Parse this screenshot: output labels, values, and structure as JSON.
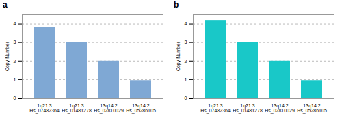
{
  "chart_data": [
    {
      "type": "bar",
      "title": "a",
      "ylabel": "Copy Number",
      "categories": [
        "1q21.3\nHs_07482364",
        "1q21.3\nHs_01481278",
        "13q14.2\nHs_02810029",
        "13q14.2\nHs_05286105"
      ],
      "values": [
        3.8,
        3.0,
        2.0,
        0.95
      ],
      "color": "#7fa8d4",
      "ylim": [
        0,
        4.5
      ],
      "yticks": [
        0,
        1,
        2,
        3,
        4
      ],
      "grid": true
    },
    {
      "type": "bar",
      "title": "b",
      "ylabel": "Copy Number",
      "categories": [
        "1q21.3\nHs_07482364",
        "1q21.3\nHs_01481278",
        "13q14.2\nHs_02810029",
        "13q14.2\nHs_05286105"
      ],
      "values": [
        4.2,
        3.0,
        2.0,
        0.95
      ],
      "color": "#19c8c8",
      "ylim": [
        0,
        4.5
      ],
      "yticks": [
        0,
        1,
        2,
        3,
        4
      ],
      "grid": true
    }
  ]
}
